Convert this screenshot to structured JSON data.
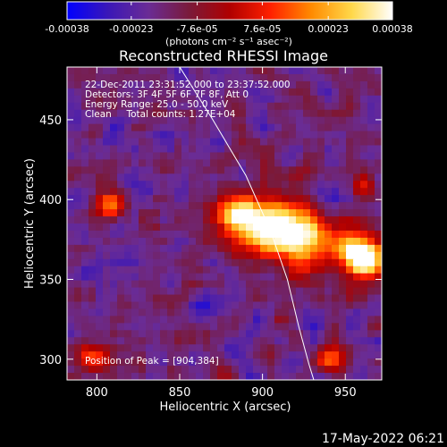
{
  "colorbar": {
    "tick_labels": [
      "-0.00038",
      "-0.00023",
      "-7.6e-05",
      "7.6e-05",
      "0.00023",
      "0.00038"
    ],
    "tick_values": [
      -0.00038,
      -0.00023,
      -7.6e-05,
      7.6e-05,
      0.00023,
      0.00038
    ],
    "range": [
      -0.00038,
      0.00038
    ],
    "units_label": "(photons cm⁻² s⁻¹ asec⁻²)",
    "colors": [
      "#0000ff",
      "#3a17b8",
      "#6a2c95",
      "#7a1a3a",
      "#b00000",
      "#ff2000",
      "#ff8a00",
      "#ffd84a",
      "#ffffff"
    ]
  },
  "chart_data": {
    "type": "heatmap",
    "title": "Reconstructed RHESSI Image",
    "xlabel": "Heliocentric X (arcsec)",
    "ylabel": "Heliocentric Y (arcsec)",
    "xlim": [
      782,
      972
    ],
    "ylim": [
      287,
      483
    ],
    "x_ticks": [
      800,
      850,
      900,
      950
    ],
    "y_ticks": [
      300,
      350,
      400,
      450
    ],
    "limb_arc": [
      [
        850,
        483
      ],
      [
        870,
        450
      ],
      [
        890,
        415
      ],
      [
        905,
        380
      ],
      [
        915,
        350
      ],
      [
        922,
        320
      ],
      [
        928,
        297
      ],
      [
        931,
        287
      ]
    ],
    "bright_regions": [
      {
        "x": 904,
        "y": 384,
        "r": 18,
        "level": 1.0
      },
      {
        "x": 925,
        "y": 375,
        "r": 16,
        "level": 0.85
      },
      {
        "x": 955,
        "y": 368,
        "r": 14,
        "level": 0.8
      },
      {
        "x": 965,
        "y": 360,
        "r": 12,
        "level": 0.7
      },
      {
        "x": 885,
        "y": 390,
        "r": 12,
        "level": 0.7
      },
      {
        "x": 808,
        "y": 396,
        "r": 9,
        "level": 0.65
      },
      {
        "x": 798,
        "y": 302,
        "r": 10,
        "level": 0.55
      },
      {
        "x": 960,
        "y": 410,
        "r": 8,
        "level": 0.45
      },
      {
        "x": 940,
        "y": 300,
        "r": 9,
        "level": 0.45
      }
    ],
    "peak_x": 904,
    "peak_y": 384
  },
  "info": {
    "time_range": "22-Dec-2011 23:31:52.000 to 23:37:52.000",
    "detectors": "Detectors: 3F 4F 5F 6F 7F 8F, Att 0",
    "energy": "Energy Range: 25.0 - 50.0 keV",
    "clean": "Clean     Total counts: 1.27E+04",
    "peak": "Position of Peak = [904,384]"
  },
  "footer_timestamp": "17-May-2022 06:21"
}
